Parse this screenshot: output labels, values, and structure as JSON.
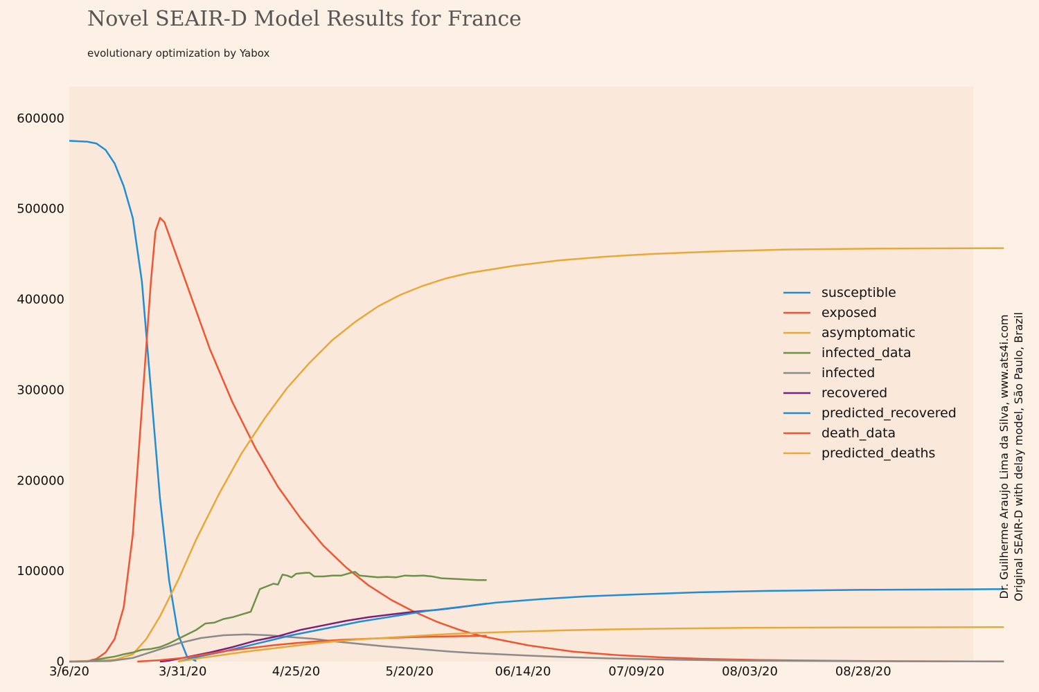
{
  "header": {
    "title": "Novel SEAIR-D Model Results for France",
    "subtitle": "evolutionary optimization by Yabox"
  },
  "credits": {
    "line1": "Dr. Guilherme Araujo Lima da Silva, www.ats4i.com",
    "line2": "Original SEAIR-D with delay model, São Paulo, Brazil"
  },
  "colors": {
    "background": "#fdf0e4",
    "plot_background": "#fae8db"
  },
  "chart_data": {
    "type": "line",
    "title": "Novel SEAIR-D Model Results for France",
    "subtitle": "evolutionary optimization by Yabox",
    "xlabel": "",
    "ylabel": "",
    "x_start_date": "2020-03-06",
    "x_end_date": "2020-09-28",
    "x_tick_labels": [
      "3/6/20",
      "3/31/20",
      "4/25/20",
      "5/20/20",
      "06/14/20",
      "07/09/20",
      "08/03/20",
      "08/28/20"
    ],
    "x_tick_dates": [
      "2020-03-06",
      "2020-03-31",
      "2020-04-25",
      "2020-05-20",
      "2020-06-14",
      "2020-07-09",
      "2020-08-03",
      "2020-08-28"
    ],
    "y_ticks": [
      0,
      100000,
      200000,
      300000,
      400000,
      500000,
      600000
    ],
    "ylim": [
      0,
      635000
    ],
    "grid": false,
    "legend_position": "center-right",
    "series": [
      {
        "name": "susceptible",
        "color": "#1f8dd6",
        "points": [
          [
            "2020-03-06",
            575000
          ],
          [
            "2020-03-10",
            574000
          ],
          [
            "2020-03-12",
            572000
          ],
          [
            "2020-03-14",
            565000
          ],
          [
            "2020-03-16",
            550000
          ],
          [
            "2020-03-18",
            525000
          ],
          [
            "2020-03-20",
            490000
          ],
          [
            "2020-03-22",
            420000
          ],
          [
            "2020-03-24",
            300000
          ],
          [
            "2020-03-26",
            180000
          ],
          [
            "2020-03-28",
            90000
          ],
          [
            "2020-03-30",
            30000
          ],
          [
            "2020-04-01",
            5000
          ],
          [
            "2020-04-03",
            500
          ]
        ]
      },
      {
        "name": "exposed",
        "color": "#f05532",
        "points": [
          [
            "2020-03-06",
            0
          ],
          [
            "2020-03-10",
            500
          ],
          [
            "2020-03-12",
            3000
          ],
          [
            "2020-03-14",
            10000
          ],
          [
            "2020-03-16",
            25000
          ],
          [
            "2020-03-18",
            60000
          ],
          [
            "2020-03-20",
            140000
          ],
          [
            "2020-03-22",
            280000
          ],
          [
            "2020-03-24",
            420000
          ],
          [
            "2020-03-25",
            475000
          ],
          [
            "2020-03-26",
            490000
          ],
          [
            "2020-03-27",
            485000
          ],
          [
            "2020-04-01",
            415000
          ],
          [
            "2020-04-06",
            345000
          ],
          [
            "2020-04-11",
            286000
          ],
          [
            "2020-04-16",
            236000
          ],
          [
            "2020-04-21",
            193000
          ],
          [
            "2020-04-26",
            158000
          ],
          [
            "2020-05-01",
            128000
          ],
          [
            "2020-05-06",
            104000
          ],
          [
            "2020-05-11",
            84000
          ],
          [
            "2020-05-16",
            68000
          ],
          [
            "2020-05-21",
            55000
          ],
          [
            "2020-05-26",
            44000
          ],
          [
            "2020-05-31",
            35000
          ],
          [
            "2020-06-05",
            28000
          ],
          [
            "2020-06-15",
            18000
          ],
          [
            "2020-06-25",
            11000
          ],
          [
            "2020-07-05",
            7000
          ],
          [
            "2020-07-15",
            4500
          ],
          [
            "2020-07-25",
            2800
          ],
          [
            "2020-08-05",
            1700
          ],
          [
            "2020-08-20",
            900
          ],
          [
            "2020-09-05",
            400
          ],
          [
            "2020-09-28",
            150
          ]
        ]
      },
      {
        "name": "asymptomatic",
        "color": "#e8a838",
        "points": [
          [
            "2020-03-06",
            0
          ],
          [
            "2020-03-16",
            2000
          ],
          [
            "2020-03-20",
            8000
          ],
          [
            "2020-03-23",
            25000
          ],
          [
            "2020-03-26",
            50000
          ],
          [
            "2020-03-30",
            90000
          ],
          [
            "2020-04-03",
            135000
          ],
          [
            "2020-04-08",
            185000
          ],
          [
            "2020-04-13",
            230000
          ],
          [
            "2020-04-18",
            268000
          ],
          [
            "2020-04-23",
            302000
          ],
          [
            "2020-04-28",
            330000
          ],
          [
            "2020-05-03",
            355000
          ],
          [
            "2020-05-08",
            375000
          ],
          [
            "2020-05-13",
            392000
          ],
          [
            "2020-05-18",
            405000
          ],
          [
            "2020-05-23",
            415000
          ],
          [
            "2020-05-28",
            423000
          ],
          [
            "2020-06-02",
            429000
          ],
          [
            "2020-06-12",
            437000
          ],
          [
            "2020-06-22",
            443000
          ],
          [
            "2020-07-02",
            447000
          ],
          [
            "2020-07-12",
            450000
          ],
          [
            "2020-07-27",
            453000
          ],
          [
            "2020-08-11",
            455000
          ],
          [
            "2020-08-31",
            456000
          ],
          [
            "2020-09-28",
            456500
          ]
        ]
      },
      {
        "name": "infected_data",
        "color": "#6e9148",
        "points": [
          [
            "2020-03-06",
            0
          ],
          [
            "2020-03-10",
            0
          ],
          [
            "2020-03-12",
            2000
          ],
          [
            "2020-03-14",
            4000
          ],
          [
            "2020-03-16",
            5500
          ],
          [
            "2020-03-18",
            8000
          ],
          [
            "2020-03-20",
            10000
          ],
          [
            "2020-03-22",
            13000
          ],
          [
            "2020-03-24",
            14000
          ],
          [
            "2020-03-26",
            16000
          ],
          [
            "2020-03-28",
            20000
          ],
          [
            "2020-03-30",
            25000
          ],
          [
            "2020-04-01",
            30000
          ],
          [
            "2020-04-03",
            35000
          ],
          [
            "2020-04-05",
            42000
          ],
          [
            "2020-04-07",
            43000
          ],
          [
            "2020-04-09",
            47000
          ],
          [
            "2020-04-11",
            49000
          ],
          [
            "2020-04-13",
            52000
          ],
          [
            "2020-04-15",
            55000
          ],
          [
            "2020-04-17",
            80000
          ],
          [
            "2020-04-19",
            84000
          ],
          [
            "2020-04-20",
            86000
          ],
          [
            "2020-04-21",
            85000
          ],
          [
            "2020-04-22",
            96000
          ],
          [
            "2020-04-23",
            95000
          ],
          [
            "2020-04-24",
            93000
          ],
          [
            "2020-04-25",
            97000
          ],
          [
            "2020-04-27",
            98000
          ],
          [
            "2020-04-28",
            98000
          ],
          [
            "2020-04-29",
            94000
          ],
          [
            "2020-05-01",
            94000
          ],
          [
            "2020-05-03",
            95000
          ],
          [
            "2020-05-05",
            95000
          ],
          [
            "2020-05-07",
            98000
          ],
          [
            "2020-05-08",
            99000
          ],
          [
            "2020-05-09",
            95000
          ],
          [
            "2020-05-11",
            94000
          ],
          [
            "2020-05-13",
            93000
          ],
          [
            "2020-05-15",
            93500
          ],
          [
            "2020-05-17",
            93000
          ],
          [
            "2020-05-19",
            95000
          ],
          [
            "2020-05-21",
            94500
          ],
          [
            "2020-05-23",
            95000
          ],
          [
            "2020-05-25",
            94000
          ],
          [
            "2020-05-27",
            92000
          ],
          [
            "2020-05-29",
            91500
          ],
          [
            "2020-05-31",
            91000
          ],
          [
            "2020-06-02",
            90500
          ],
          [
            "2020-06-04",
            90000
          ],
          [
            "2020-06-06",
            90000
          ]
        ]
      },
      {
        "name": "infected",
        "color": "#8a8a8a",
        "points": [
          [
            "2020-03-06",
            0
          ],
          [
            "2020-03-15",
            500
          ],
          [
            "2020-03-20",
            4000
          ],
          [
            "2020-03-25",
            12000
          ],
          [
            "2020-03-30",
            20000
          ],
          [
            "2020-04-04",
            26000
          ],
          [
            "2020-04-09",
            29000
          ],
          [
            "2020-04-14",
            30000
          ],
          [
            "2020-04-19",
            29000
          ],
          [
            "2020-04-24",
            27000
          ],
          [
            "2020-04-29",
            25000
          ],
          [
            "2020-05-04",
            22000
          ],
          [
            "2020-05-09",
            19500
          ],
          [
            "2020-05-14",
            17000
          ],
          [
            "2020-05-19",
            15000
          ],
          [
            "2020-05-24",
            13000
          ],
          [
            "2020-05-29",
            11000
          ],
          [
            "2020-06-03",
            9500
          ],
          [
            "2020-06-13",
            7000
          ],
          [
            "2020-06-23",
            5000
          ],
          [
            "2020-07-03",
            3500
          ],
          [
            "2020-07-18",
            2000
          ],
          [
            "2020-08-02",
            1000
          ],
          [
            "2020-08-22",
            500
          ],
          [
            "2020-09-28",
            100
          ]
        ]
      },
      {
        "name": "recovered",
        "color": "#7b1f7e",
        "points": [
          [
            "2020-03-26",
            0
          ],
          [
            "2020-03-28",
            1000
          ],
          [
            "2020-04-01",
            5000
          ],
          [
            "2020-04-06",
            10000
          ],
          [
            "2020-04-11",
            16000
          ],
          [
            "2020-04-16",
            23000
          ],
          [
            "2020-04-21",
            28000
          ],
          [
            "2020-04-26",
            35000
          ],
          [
            "2020-05-01",
            40000
          ],
          [
            "2020-05-06",
            45000
          ],
          [
            "2020-05-11",
            49000
          ],
          [
            "2020-05-16",
            52000
          ],
          [
            "2020-05-21",
            55000
          ],
          [
            "2020-05-26",
            57000
          ],
          [
            "2020-05-31",
            60000
          ],
          [
            "2020-06-06",
            64000
          ]
        ]
      },
      {
        "name": "predicted_recovered",
        "color": "#1f8dd6",
        "points": [
          [
            "2020-03-30",
            0
          ],
          [
            "2020-04-04",
            6000
          ],
          [
            "2020-04-09",
            11000
          ],
          [
            "2020-04-14",
            17000
          ],
          [
            "2020-04-19",
            23000
          ],
          [
            "2020-04-24",
            29000
          ],
          [
            "2020-04-29",
            34000
          ],
          [
            "2020-05-04",
            39000
          ],
          [
            "2020-05-09",
            44000
          ],
          [
            "2020-05-14",
            48000
          ],
          [
            "2020-05-19",
            52000
          ],
          [
            "2020-05-24",
            56000
          ],
          [
            "2020-05-29",
            59000
          ],
          [
            "2020-06-03",
            62000
          ],
          [
            "2020-06-08",
            65000
          ],
          [
            "2020-06-18",
            69000
          ],
          [
            "2020-06-28",
            72000
          ],
          [
            "2020-07-08",
            74000
          ],
          [
            "2020-07-23",
            76500
          ],
          [
            "2020-08-07",
            78000
          ],
          [
            "2020-08-27",
            79200
          ],
          [
            "2020-09-28",
            80000
          ]
        ]
      },
      {
        "name": "death_data",
        "color": "#f05532",
        "points": [
          [
            "2020-03-21",
            0
          ],
          [
            "2020-03-26",
            1500
          ],
          [
            "2020-03-31",
            4000
          ],
          [
            "2020-04-05",
            8000
          ],
          [
            "2020-04-10",
            12000
          ],
          [
            "2020-04-15",
            15000
          ],
          [
            "2020-04-20",
            18000
          ],
          [
            "2020-04-25",
            20500
          ],
          [
            "2020-04-30",
            22500
          ],
          [
            "2020-05-05",
            24000
          ],
          [
            "2020-05-10",
            25000
          ],
          [
            "2020-05-15",
            26000
          ],
          [
            "2020-05-20",
            26800
          ],
          [
            "2020-05-25",
            27500
          ],
          [
            "2020-05-31",
            28000
          ],
          [
            "2020-06-06",
            28500
          ]
        ]
      },
      {
        "name": "predicted_deaths",
        "color": "#e8a838",
        "points": [
          [
            "2020-03-30",
            0
          ],
          [
            "2020-04-04",
            4000
          ],
          [
            "2020-04-09",
            7500
          ],
          [
            "2020-04-14",
            11000
          ],
          [
            "2020-04-19",
            14000
          ],
          [
            "2020-04-24",
            17000
          ],
          [
            "2020-04-29",
            20000
          ],
          [
            "2020-05-04",
            22500
          ],
          [
            "2020-05-09",
            24500
          ],
          [
            "2020-05-14",
            26000
          ],
          [
            "2020-05-19",
            27500
          ],
          [
            "2020-05-24",
            29000
          ],
          [
            "2020-05-29",
            30500
          ],
          [
            "2020-06-03",
            31500
          ],
          [
            "2020-06-13",
            33000
          ],
          [
            "2020-06-23",
            34500
          ],
          [
            "2020-07-03",
            35500
          ],
          [
            "2020-07-18",
            36500
          ],
          [
            "2020-08-02",
            37200
          ],
          [
            "2020-08-22",
            37700
          ],
          [
            "2020-09-28",
            38000
          ]
        ]
      }
    ]
  }
}
